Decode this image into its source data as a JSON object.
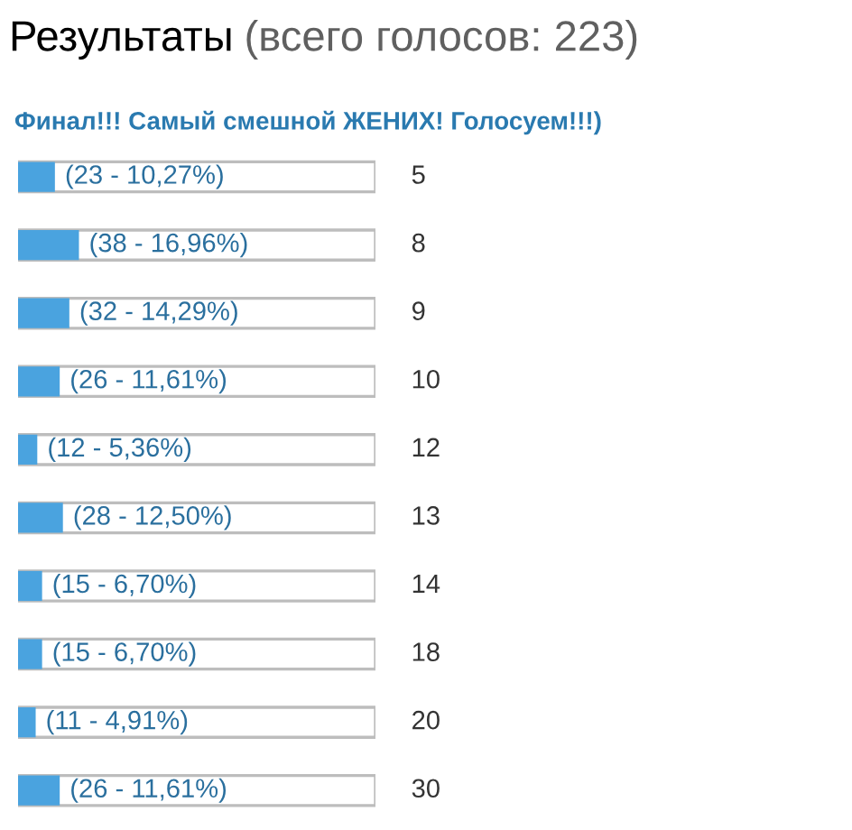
{
  "chart_data": {
    "type": "bar",
    "orientation": "horizontal",
    "title": "Результаты",
    "subtitle": "(всего голосов: 223)",
    "annotations": [
      "Финал!!! Самый смешной ЖЕНИХ! Голосуем!!!)"
    ],
    "categories": [
      "5",
      "8",
      "9",
      "10",
      "12",
      "13",
      "14",
      "18",
      "20",
      "30"
    ],
    "values": [
      23,
      38,
      32,
      26,
      12,
      28,
      15,
      15,
      11,
      26
    ],
    "value_labels": [
      "(23 - 10,27%)",
      "(38 - 16,96%)",
      "(32 - 14,29%)",
      "(26 - 11,61%)",
      "(12 - 5,36%)",
      "(28 - 12,50%)",
      "(15 - 6,70%)",
      "(15 - 6,70%)",
      "(11 - 4,91%)",
      "(26 - 11,61%)"
    ],
    "color": "#4aa3df",
    "xlim": [
      0,
      223
    ]
  }
}
